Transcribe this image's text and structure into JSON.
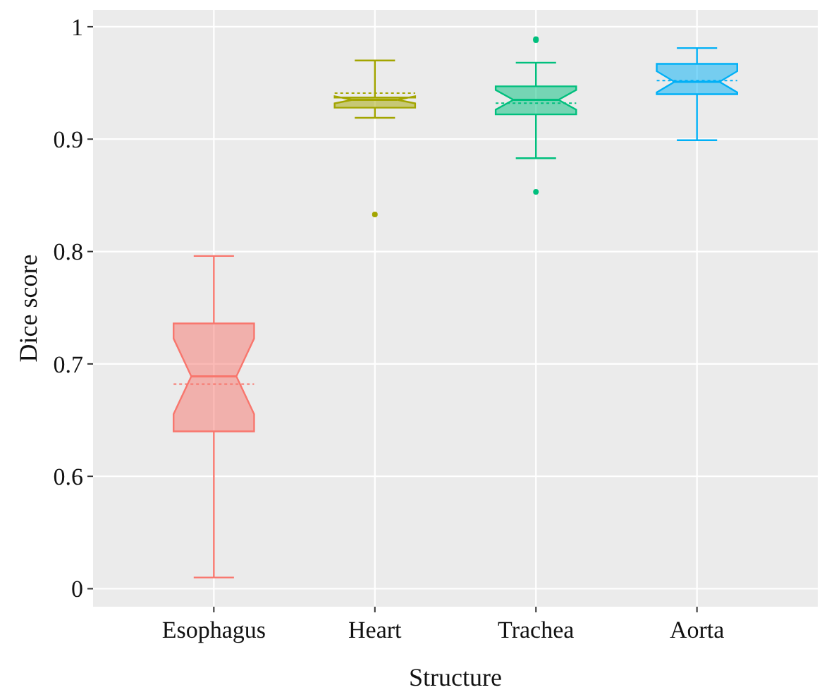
{
  "chart_data": {
    "type": "box",
    "xlabel": "Structure",
    "ylabel": "Dice score",
    "categories": [
      "Esophagus",
      "Heart",
      "Trachea",
      "Aorta"
    ],
    "colors": [
      "#f8766d",
      "#a3a500",
      "#00bf7d",
      "#00b0f6"
    ],
    "boxes": [
      {
        "low": 0.51,
        "q1": 0.64,
        "median": 0.689,
        "q3": 0.736,
        "high": 0.796,
        "mean": 0.682
      },
      {
        "low": 0.919,
        "q1": 0.928,
        "median": 0.935,
        "q3": 0.937,
        "high": 0.97,
        "mean": 0.941,
        "outliers": [
          0.833
        ]
      },
      {
        "low": 0.883,
        "q1": 0.922,
        "median": 0.935,
        "q3": 0.947,
        "high": 0.968,
        "mean": 0.932,
        "outliers": [
          0.988,
          0.989,
          0.853
        ]
      },
      {
        "low": 0.899,
        "q1": 0.94,
        "median": 0.951,
        "q3": 0.967,
        "high": 0.981,
        "mean": 0.952
      }
    ],
    "ylim": [
      0.484,
      1.015
    ],
    "yticks": [
      {
        "value": 0.5,
        "label": "0"
      },
      0.6,
      0.7,
      0.8,
      0.9,
      1
    ],
    "grid": true
  }
}
